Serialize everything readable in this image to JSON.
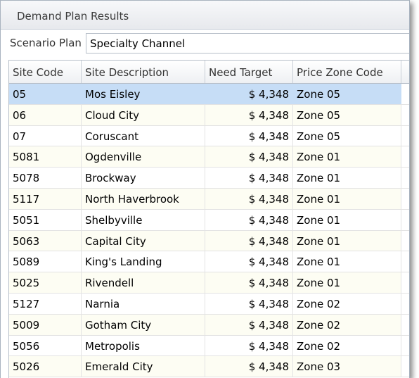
{
  "window": {
    "title": "Demand Plan Results"
  },
  "scenario": {
    "label": "Scenario Plan",
    "value": "Specialty Channel"
  },
  "grid": {
    "columns": [
      "Site Code",
      "Site Description",
      "Need Target",
      "Price Zone Code"
    ],
    "selected_row_index": 0,
    "rows": [
      [
        "05",
        "Mos Eisley",
        "$ 4,348",
        "Zone 05"
      ],
      [
        "06",
        "Cloud City",
        "$ 4,348",
        "Zone 05"
      ],
      [
        "07",
        "Coruscant",
        "$ 4,348",
        "Zone 05"
      ],
      [
        "5081",
        "Ogdenville",
        "$ 4,348",
        "Zone 01"
      ],
      [
        "5078",
        "Brockway",
        "$ 4,348",
        "Zone 01"
      ],
      [
        "5117",
        "North Haverbrook",
        "$ 4,348",
        "Zone 01"
      ],
      [
        "5051",
        "Shelbyville",
        "$ 4,348",
        "Zone 01"
      ],
      [
        "5063",
        "Capital City",
        "$ 4,348",
        "Zone 01"
      ],
      [
        "5089",
        "King's Landing",
        "$ 4,348",
        "Zone 01"
      ],
      [
        "5025",
        "Rivendell",
        "$ 4,348",
        "Zone 01"
      ],
      [
        "5127",
        "Narnia",
        "$ 4,348",
        "Zone 02"
      ],
      [
        "5009",
        "Gotham City",
        "$ 4,348",
        "Zone 02"
      ],
      [
        "5056",
        "Metropolis",
        "$ 4,348",
        "Zone 02"
      ],
      [
        "5026",
        "Emerald City",
        "$ 4,348",
        "Zone 03"
      ]
    ]
  },
  "colors": {
    "selected_row": "#c6ddf6",
    "alt_row": "#fdfdf3",
    "border": "#b7bfc9"
  }
}
